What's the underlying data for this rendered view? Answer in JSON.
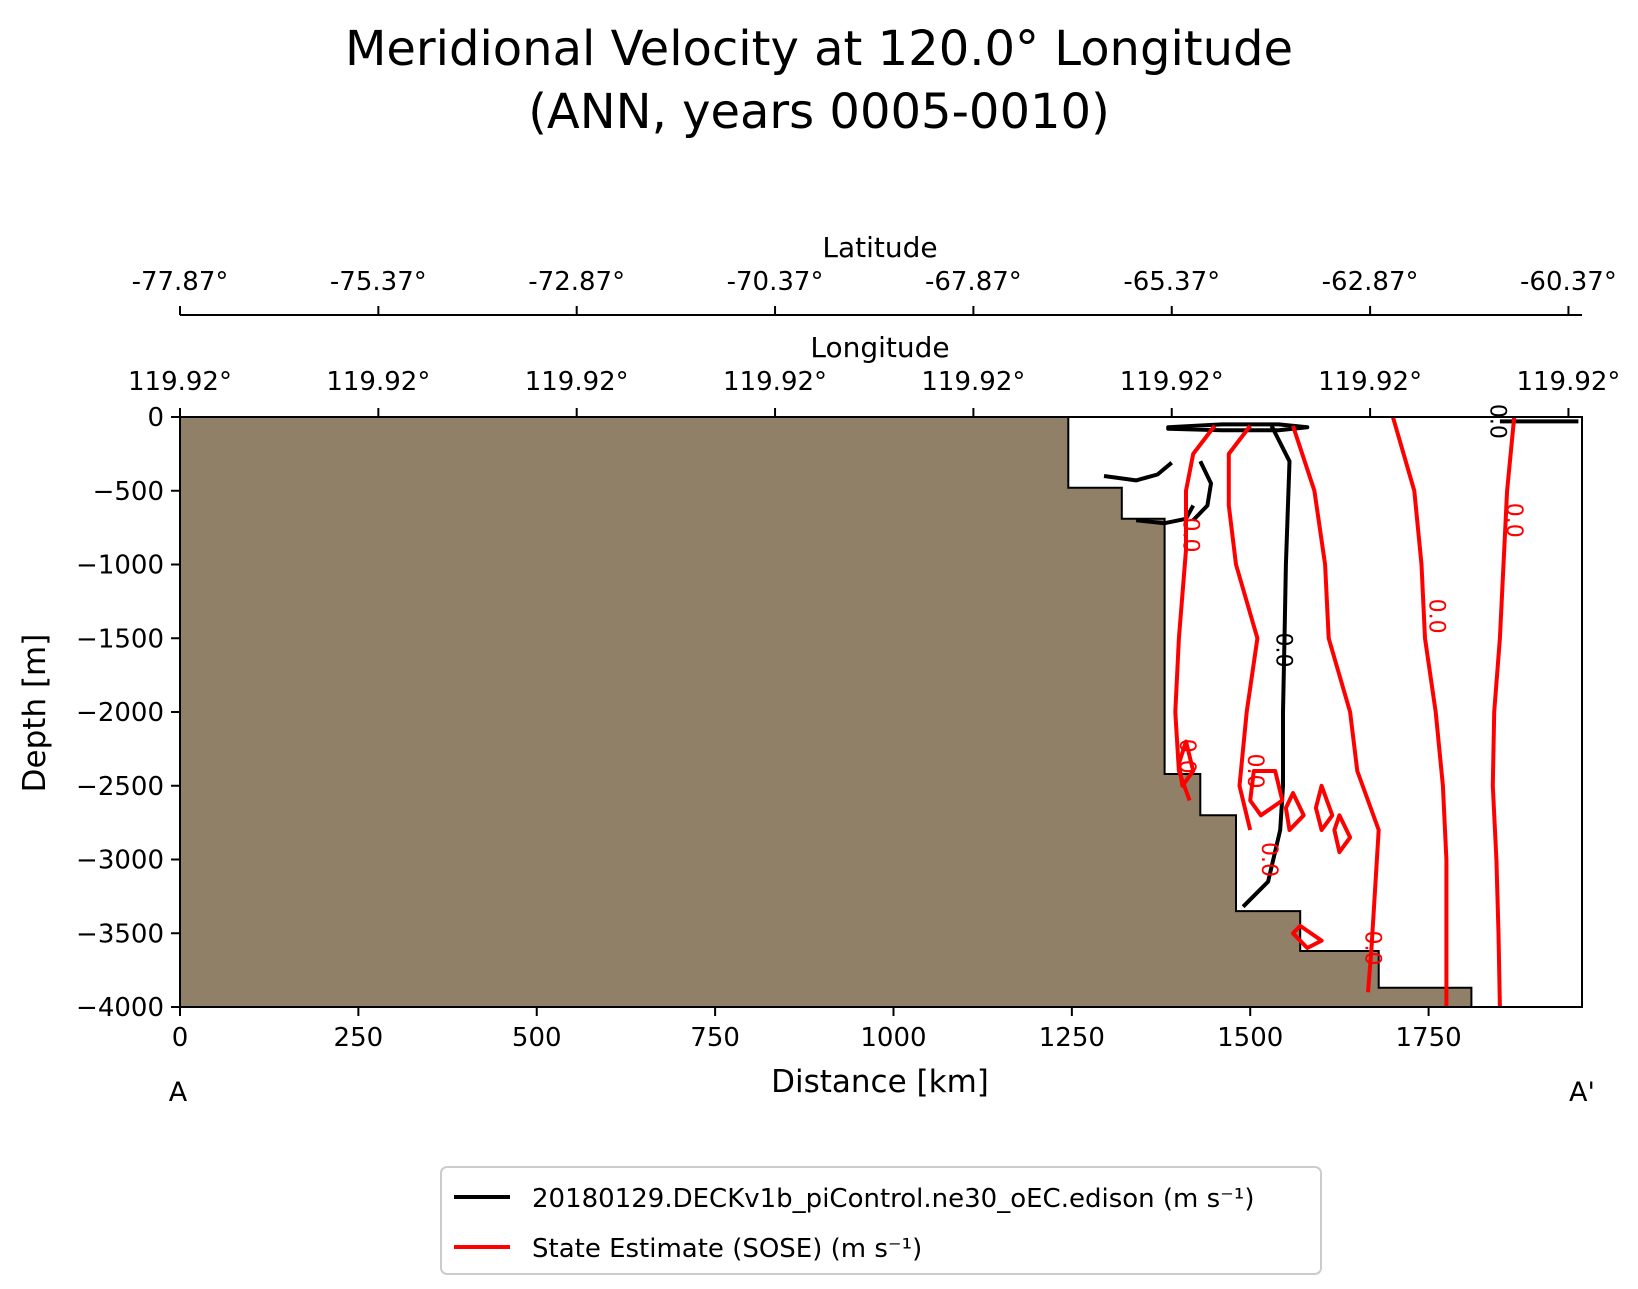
{
  "chart_data": {
    "type": "line",
    "title_line1": "Meridional Velocity at 120.0° Longitude",
    "title_line2": "(ANN, years 0005-0010)",
    "xlabel": "Distance [km]",
    "ylabel": "Depth [m]",
    "xlim": [
      0,
      1965
    ],
    "ylim": [
      -4000,
      0
    ],
    "x_ticks": [
      0,
      250,
      500,
      750,
      1000,
      1250,
      1500,
      1750
    ],
    "x_tick_labels": [
      "0",
      "250",
      "500",
      "750",
      "1000",
      "1250",
      "1500",
      "1750"
    ],
    "y_ticks": [
      0,
      -500,
      -1000,
      -1500,
      -2000,
      -2500,
      -3000,
      -3500,
      -4000
    ],
    "y_tick_labels": [
      "0",
      "−500",
      "−1000",
      "−1500",
      "−2000",
      "−2500",
      "−3000",
      "−3500",
      "−4000"
    ],
    "section_start_label": "A",
    "section_end_label": "A'",
    "top_axis_1": {
      "label": "Latitude",
      "positions_km": [
        0,
        278,
        556,
        834,
        1112,
        1390,
        1668,
        1946
      ],
      "tick_labels": [
        "-77.87°",
        "-75.37°",
        "-72.87°",
        "-70.37°",
        "-67.87°",
        "-65.37°",
        "-62.87°",
        "-60.37°"
      ]
    },
    "top_axis_2": {
      "label": "Longitude",
      "positions_km": [
        0,
        278,
        556,
        834,
        1112,
        1390,
        1668,
        1946
      ],
      "tick_labels": [
        "119.92°",
        "119.92°",
        "119.92°",
        "119.92°",
        "119.92°",
        "119.92°",
        "119.92°",
        "119.92°"
      ]
    },
    "land_color": "#8f8067",
    "bathymetry": [
      [
        1245,
        0
      ],
      [
        1245,
        -480
      ],
      [
        1320,
        -480
      ],
      [
        1320,
        -690
      ],
      [
        1380,
        -690
      ],
      [
        1380,
        -2420
      ],
      [
        1430,
        -2420
      ],
      [
        1430,
        -2700
      ],
      [
        1480,
        -2700
      ],
      [
        1480,
        -3350
      ],
      [
        1570,
        -3350
      ],
      [
        1570,
        -3620
      ],
      [
        1680,
        -3620
      ],
      [
        1680,
        -3870
      ],
      [
        1810,
        -3870
      ],
      [
        1810,
        -4000
      ]
    ],
    "series": [
      {
        "name": "20180129.DECKv1b_piControl.ne30_oEC.edison (m s⁻¹)",
        "color": "#000000",
        "contour_level": "0.0",
        "lines": [
          [
            [
              1530,
              -60
            ],
            [
              1555,
              -300
            ],
            [
              1550,
              -1000
            ],
            [
              1548,
              -1500
            ],
            [
              1546,
              -2000
            ],
            [
              1546,
              -2500
            ],
            [
              1542,
              -2800
            ],
            [
              1525,
              -3150
            ],
            [
              1490,
              -3320
            ]
          ],
          [
            [
              1295,
              -400
            ],
            [
              1340,
              -430
            ],
            [
              1370,
              -390
            ],
            [
              1390,
              -310
            ]
          ],
          [
            [
              1340,
              -700
            ],
            [
              1380,
              -720
            ],
            [
              1410,
              -690
            ],
            [
              1420,
              -600
            ]
          ],
          [
            [
              1420,
              -700
            ],
            [
              1440,
              -600
            ],
            [
              1445,
              -450
            ],
            [
              1430,
              -300
            ]
          ],
          [
            [
              1850,
              -30
            ],
            [
              1960,
              -30
            ]
          ]
        ],
        "closed_loops": [
          [
            [
              1385,
              -70
            ],
            [
              1460,
              -50
            ],
            [
              1540,
              -50
            ],
            [
              1580,
              -70
            ],
            [
              1540,
              -90
            ],
            [
              1460,
              -90
            ],
            [
              1385,
              -80
            ]
          ]
        ],
        "labels": [
          {
            "text": "0.0",
            "x": 1545,
            "y": -1580
          },
          {
            "text": "0.0",
            "x": 1845,
            "y": -30
          }
        ]
      },
      {
        "name": "State Estimate (SOSE) (m s⁻¹)",
        "color": "#ff0000",
        "contour_level": "0.0",
        "lines": [
          [
            [
              1450,
              -60
            ],
            [
              1420,
              -250
            ],
            [
              1410,
              -500
            ],
            [
              1410,
              -900
            ],
            [
              1400,
              -1500
            ],
            [
              1395,
              -2000
            ],
            [
              1400,
              -2400
            ],
            [
              1415,
              -2600
            ]
          ],
          [
            [
              1500,
              -60
            ],
            [
              1470,
              -250
            ],
            [
              1470,
              -600
            ],
            [
              1480,
              -1000
            ],
            [
              1510,
              -1500
            ],
            [
              1495,
              -2000
            ],
            [
              1485,
              -2500
            ],
            [
              1500,
              -2800
            ]
          ],
          [
            [
              1560,
              -60
            ],
            [
              1590,
              -500
            ],
            [
              1605,
              -1000
            ],
            [
              1610,
              -1500
            ],
            [
              1640,
              -2000
            ],
            [
              1650,
              -2400
            ],
            [
              1680,
              -2800
            ],
            [
              1670,
              -3600
            ],
            [
              1665,
              -3900
            ]
          ],
          [
            [
              1700,
              0
            ],
            [
              1730,
              -500
            ],
            [
              1740,
              -1000
            ],
            [
              1745,
              -1500
            ],
            [
              1760,
              -2000
            ],
            [
              1770,
              -2500
            ],
            [
              1775,
              -3000
            ],
            [
              1775,
              -3500
            ],
            [
              1775,
              -4000
            ]
          ],
          [
            [
              1870,
              0
            ],
            [
              1860,
              -500
            ],
            [
              1855,
              -1000
            ],
            [
              1850,
              -1500
            ],
            [
              1842,
              -2000
            ],
            [
              1840,
              -2500
            ],
            [
              1845,
              -3000
            ],
            [
              1848,
              -3500
            ],
            [
              1850,
              -4000
            ]
          ]
        ],
        "closed_loops": [
          [
            [
              1505,
              -2400
            ],
            [
              1535,
              -2400
            ],
            [
              1545,
              -2600
            ],
            [
              1515,
              -2700
            ],
            [
              1500,
              -2600
            ]
          ],
          [
            [
              1410,
              -2200
            ],
            [
              1420,
              -2400
            ],
            [
              1405,
              -2500
            ],
            [
              1400,
              -2350
            ]
          ],
          [
            [
              1560,
              -2550
            ],
            [
              1575,
              -2700
            ],
            [
              1555,
              -2800
            ],
            [
              1550,
              -2650
            ]
          ],
          [
            [
              1600,
              -2500
            ],
            [
              1615,
              -2700
            ],
            [
              1600,
              -2800
            ],
            [
              1592,
              -2650
            ]
          ],
          [
            [
              1625,
              -2700
            ],
            [
              1640,
              -2850
            ],
            [
              1625,
              -2950
            ],
            [
              1618,
              -2800
            ]
          ],
          [
            [
              1570,
              -3450
            ],
            [
              1600,
              -3550
            ],
            [
              1580,
              -3600
            ],
            [
              1560,
              -3500
            ]
          ]
        ],
        "labels": [
          {
            "text": "0.0",
            "x": 1415,
            "y": -800
          },
          {
            "text": "0.0",
            "x": 1410,
            "y": -2300
          },
          {
            "text": "0.0",
            "x": 1505,
            "y": -2400
          },
          {
            "text": "0.0",
            "x": 1525,
            "y": -3000
          },
          {
            "text": "0.0",
            "x": 1670,
            "y": -3600
          },
          {
            "text": "0.0",
            "x": 1760,
            "y": -1350
          },
          {
            "text": "0.0",
            "x": 1868,
            "y": -700
          }
        ]
      }
    ],
    "legend_position": "bottom-center"
  }
}
